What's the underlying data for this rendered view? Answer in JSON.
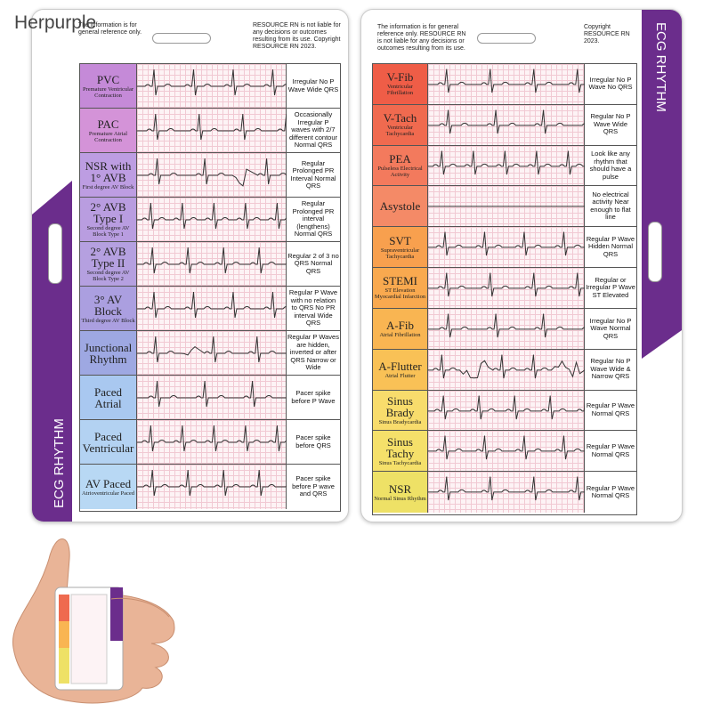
{
  "brand": "Herpurple",
  "left_card": {
    "notice": "The information is for general reference only.",
    "disclaimer": "RESOURCE RN is not liable for any decisions or outcomes resulting from its use. Copyright RESOURCE RN 2023.",
    "side_label": "ECG RHYTHM",
    "rows": [
      {
        "title": "PVC",
        "subtitle": "Premature Ventricular Contraction",
        "description": "Irregular No P Wave Wide QRS",
        "color": "#c58ad8"
      },
      {
        "title": "PAC",
        "subtitle": "Premature Atrial Contraction",
        "description": "Occasionally Irregular P waves with 2/7 different contour Normal QRS",
        "color": "#d493d8"
      },
      {
        "title": "NSR with 1° AVB",
        "subtitle": "First degree AV Block",
        "description": "Regular Prolonged PR Interval Normal QRS",
        "color": "#bd9de2"
      },
      {
        "title": "2° AVB Type I",
        "subtitle": "Second degree AV Block Type 1",
        "description": "Regular Prolonged PR interval (lengthens) Normal QRS",
        "color": "#b99de0"
      },
      {
        "title": "2° AVB Type II",
        "subtitle": "Second degree AV Block Type 2",
        "description": "Regular 2 of 3 no QRS Normal QRS",
        "color": "#b5a0e0"
      },
      {
        "title": "3° AV Block",
        "subtitle": "Third degree AV Block",
        "description": "Regular P Wave with no relation to QRS No PR interval Wide QRS",
        "color": "#ab9fe0"
      },
      {
        "title": "Junctional Rhythm",
        "description": "Regular P Waves are hidden, inverted or after QRS Narrow or Wide",
        "color": "#9ea8e2"
      },
      {
        "title": "Paced Atrial",
        "description": "Pacer spike before P Wave",
        "color": "#a9c8f0"
      },
      {
        "title": "Paced Ventricular",
        "description": "Pacer spike before QRS",
        "color": "#b3d2f2"
      },
      {
        "title": "AV Paced",
        "subtitle": "Atrioventricular Paced",
        "description": "Pacer spike before P wave and QRS",
        "color": "#b8d8f4"
      }
    ]
  },
  "right_card": {
    "notice": "The information is for general reference only. RESOURCE RN is not liable for any decisions or outcomes resulting from its use.",
    "copyright": "Copyright RESOURCE RN 2023.",
    "side_label": "ECG RHYTHM",
    "rows": [
      {
        "title": "V-Fib",
        "subtitle": "Ventricular Fibrillation",
        "description": "Irregular No P Wave No QRS",
        "color": "#ef5d47"
      },
      {
        "title": "V-Tach",
        "subtitle": "Ventricular Tachycardia",
        "description": "Regular No P Wave Wide QRS",
        "color": "#f06a4f"
      },
      {
        "title": "PEA",
        "subtitle": "Pulseless Electrical Activity",
        "description": "Look like any rhythm that should have a pulse",
        "color": "#f37a5d"
      },
      {
        "title": "Asystole",
        "description": "No electrical activity Near enough to flat line",
        "color": "#f48a67"
      },
      {
        "title": "SVT",
        "subtitle": "Supraventricular Tachycardia",
        "description": "Regular P Wave Hidden Normal QRS",
        "color": "#f8a04e"
      },
      {
        "title": "STEMI",
        "subtitle": "ST Elevation Myocardial Infarction",
        "description": "Regular or Irregular P Wave ST Elevated",
        "color": "#f9a94f"
      },
      {
        "title": "A-Fib",
        "subtitle": "Atrial Fibrillation",
        "description": "Irregular No P Wave Normal QRS",
        "color": "#f9b552"
      },
      {
        "title": "A-Flutter",
        "subtitle": "Atrial Flutter",
        "description": "Regular No P Wave Wide & Narrow QRS",
        "color": "#f9c156"
      },
      {
        "title": "Sinus Brady",
        "subtitle": "Sinus Bradycardia",
        "description": "Regular P Wave Normal QRS",
        "color": "#f8dc6c"
      },
      {
        "title": "Sinus Tachy",
        "subtitle": "Sinus Tachycardia",
        "description": "Regular P Wave Normal QRS",
        "color": "#f5e06a"
      },
      {
        "title": "NSR",
        "subtitle": "Normal Sinus Rhythm",
        "description": "Regular P Wave Normal QRS",
        "color": "#eee166"
      }
    ]
  }
}
